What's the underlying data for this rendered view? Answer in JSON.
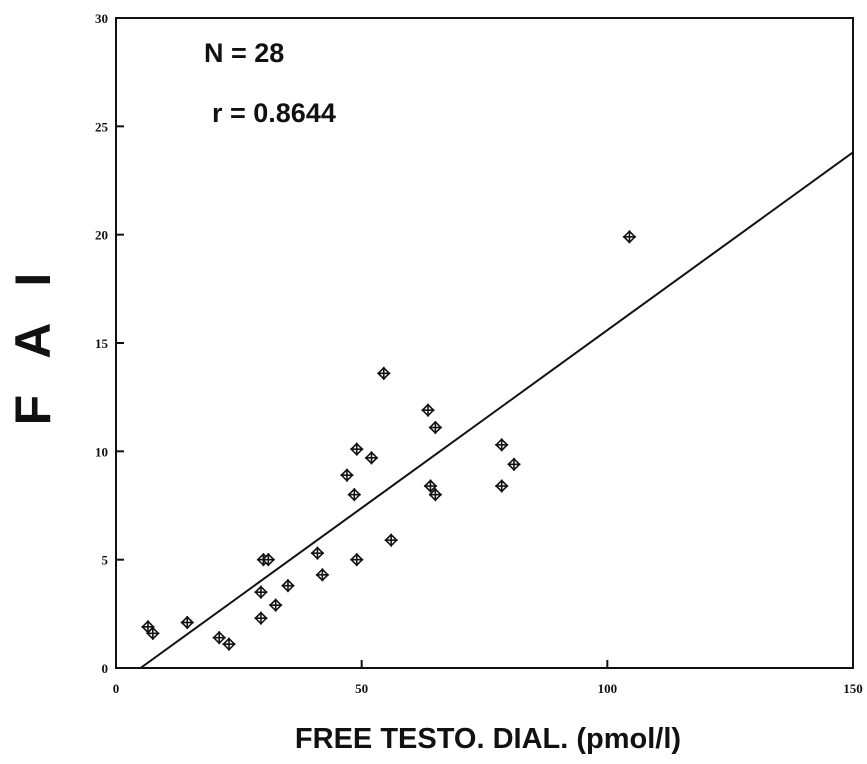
{
  "chart_data": {
    "type": "scatter",
    "xlabel": "FREE TESTO. DIAL. (pmol/l)",
    "ylabel": "F A I",
    "xlim": [
      0,
      150
    ],
    "ylim": [
      0,
      30
    ],
    "xticks": [
      0,
      50,
      100,
      150
    ],
    "yticks": [
      0,
      5,
      10,
      15,
      20,
      25,
      30
    ],
    "xtick_labels": [
      "0",
      "50",
      "100",
      "150"
    ],
    "ytick_labels": [
      "0",
      "5",
      "10",
      "15",
      "20",
      "25",
      "30"
    ],
    "annotations": [
      "N = 28",
      "r = 0.8644"
    ],
    "grid": false,
    "points": [
      {
        "x": 6.5,
        "y": 1.9
      },
      {
        "x": 7.5,
        "y": 1.6
      },
      {
        "x": 14.5,
        "y": 2.1
      },
      {
        "x": 21,
        "y": 1.4
      },
      {
        "x": 23,
        "y": 1.1
      },
      {
        "x": 29.5,
        "y": 2.3
      },
      {
        "x": 29.5,
        "y": 3.5
      },
      {
        "x": 30,
        "y": 5.0
      },
      {
        "x": 31,
        "y": 5.0
      },
      {
        "x": 32.5,
        "y": 2.9
      },
      {
        "x": 35,
        "y": 3.8
      },
      {
        "x": 41,
        "y": 5.3
      },
      {
        "x": 42,
        "y": 4.3
      },
      {
        "x": 47,
        "y": 8.9
      },
      {
        "x": 48.5,
        "y": 8.0
      },
      {
        "x": 49,
        "y": 10.1
      },
      {
        "x": 49,
        "y": 5.0
      },
      {
        "x": 52,
        "y": 9.7
      },
      {
        "x": 54.5,
        "y": 13.6
      },
      {
        "x": 56,
        "y": 5.9
      },
      {
        "x": 63.5,
        "y": 11.9
      },
      {
        "x": 64,
        "y": 8.4
      },
      {
        "x": 65,
        "y": 8.0
      },
      {
        "x": 65,
        "y": 11.1
      },
      {
        "x": 78.5,
        "y": 10.3
      },
      {
        "x": 78.5,
        "y": 8.4
      },
      {
        "x": 81,
        "y": 9.4
      },
      {
        "x": 104.5,
        "y": 19.9
      }
    ],
    "regression_line": {
      "x": [
        5,
        150
      ],
      "y": [
        0,
        23.8
      ]
    }
  }
}
